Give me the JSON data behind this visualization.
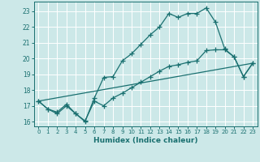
{
  "xlabel": "Humidex (Indice chaleur)",
  "bg_color": "#cce8e8",
  "grid_color": "#ffffff",
  "line_color": "#1a7070",
  "xlim": [
    -0.5,
    23.5
  ],
  "ylim": [
    15.7,
    23.6
  ],
  "yticks": [
    16,
    17,
    18,
    19,
    20,
    21,
    22,
    23
  ],
  "xticks": [
    0,
    1,
    2,
    3,
    4,
    5,
    6,
    7,
    8,
    9,
    10,
    11,
    12,
    13,
    14,
    15,
    16,
    17,
    18,
    19,
    20,
    21,
    22,
    23
  ],
  "line1_x": [
    0,
    1,
    2,
    3,
    4,
    5,
    6,
    7,
    8,
    9,
    10,
    11,
    12,
    13,
    14,
    15,
    16,
    17,
    18,
    19,
    20,
    21,
    22,
    23
  ],
  "line1_y": [
    17.3,
    16.8,
    16.5,
    17.0,
    16.5,
    16.0,
    17.5,
    18.8,
    18.85,
    19.85,
    20.3,
    20.9,
    21.5,
    22.0,
    22.85,
    22.6,
    22.85,
    22.85,
    23.2,
    22.3,
    20.6,
    20.1,
    18.85,
    19.7
  ],
  "line2_x": [
    0,
    1,
    2,
    3,
    4,
    5,
    6,
    7,
    8,
    9,
    10,
    11,
    12,
    13,
    14,
    15,
    16,
    17,
    18,
    19,
    20,
    21,
    22,
    23
  ],
  "line2_y": [
    17.3,
    16.8,
    16.6,
    17.1,
    16.5,
    16.05,
    17.3,
    17.0,
    17.5,
    17.8,
    18.15,
    18.5,
    18.85,
    19.2,
    19.5,
    19.6,
    19.75,
    19.85,
    20.5,
    20.55,
    20.55,
    20.1,
    18.85,
    19.7
  ],
  "line3_x": [
    0,
    23
  ],
  "line3_y": [
    17.3,
    19.7
  ]
}
